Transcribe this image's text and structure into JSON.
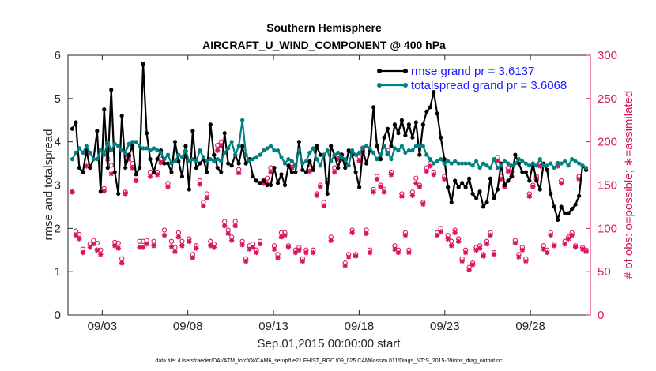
{
  "chart_data": {
    "type": "line",
    "title": "Southern Hemisphere",
    "subtitle": "AIRCRAFT_U_WIND_COMPONENT @ 400 hPa",
    "xlabel": "Sep.01,2015 00:00:00 start",
    "ylabel": "rmse and totalspread",
    "ylabel_right": "# of obs: o=possible; ∗=assimilated",
    "footer": "data file: /Users/raeder/DAI/ATM_forcXX/CAM6_setup/f.e21.FHIST_BGC.f09_025.CAM6assim.011/Diags_NTrS_2015-09/obs_diag_output.nc",
    "ylim": [
      0,
      6
    ],
    "y2lim": [
      0,
      300
    ],
    "xlim": [
      1.0,
      31.5
    ],
    "yticks": [
      "0",
      "1",
      "2",
      "3",
      "4",
      "5",
      "6"
    ],
    "y2ticks": [
      "0",
      "50",
      "100",
      "150",
      "200",
      "250",
      "300"
    ],
    "xticks": [
      {
        "x": 3,
        "label": "09/03"
      },
      {
        "x": 8,
        "label": "09/08"
      },
      {
        "x": 13,
        "label": "09/13"
      },
      {
        "x": 18,
        "label": "09/18"
      },
      {
        "x": 23,
        "label": "09/23"
      },
      {
        "x": 28,
        "label": "09/28"
      }
    ],
    "series": [
      {
        "name": "rmse grand pr = 3.6137",
        "color": "#000000",
        "marker": "dot",
        "axis": "left",
        "values": [
          4.3,
          4.45,
          3.4,
          3.3,
          3.8,
          3.4,
          3.6,
          4.25,
          2.85,
          4.75,
          3.4,
          5.2,
          3.3,
          2.8,
          4.6,
          3.4,
          3.7,
          3.9,
          3.25,
          3.4,
          5.8,
          4.2,
          3.6,
          3.3,
          3.6,
          3.8,
          3.5,
          3.5,
          3.3,
          4.0,
          3.55,
          3.2,
          3.9,
          2.9,
          4.25,
          3.4,
          3.5,
          3.6,
          3.3,
          4.4,
          3.7,
          3.4,
          3.3,
          4.2,
          3.5,
          3.45,
          3.7,
          3.5,
          3.9,
          3.5,
          3.6,
          3.2,
          3.1,
          3.05,
          3.1,
          3.0,
          3.0,
          3.4,
          3.05,
          3.25,
          3.0,
          3.45,
          3.3,
          3.3,
          4.0,
          3.35,
          3.3,
          3.55,
          3.35,
          3.9,
          3.7,
          3.7,
          2.8,
          3.9,
          3.7,
          3.4,
          3.7,
          3.4,
          3.8,
          3.7,
          3.3,
          2.95,
          3.8,
          3.5,
          3.8,
          4.8,
          3.9,
          3.6,
          4.1,
          4.3,
          3.9,
          4.4,
          4.2,
          4.5,
          4.15,
          4.4,
          4.1,
          4.45,
          3.7,
          4.4,
          4.7,
          4.8,
          5.15,
          4.65,
          4.1,
          3.6,
          2.95,
          2.6,
          3.1,
          2.95,
          3.05,
          2.95,
          3.15,
          2.8,
          2.7,
          2.85,
          2.5,
          2.6,
          3.15,
          2.7,
          2.9,
          3.5,
          3.0,
          3.1,
          3.2,
          3.7,
          3.5,
          3.3,
          3.3,
          3.1,
          3.5,
          3.1,
          2.9,
          3.5,
          3.35,
          2.8,
          2.5,
          2.2,
          2.5,
          2.35,
          2.35,
          2.45,
          2.55,
          2.75,
          3.45,
          3.35
        ]
      },
      {
        "name": "totalspread grand pr = 3.6068",
        "color": "#008080",
        "marker": "dot",
        "axis": "left",
        "values": [
          3.6,
          3.75,
          3.85,
          3.75,
          3.9,
          3.75,
          3.6,
          3.6,
          3.8,
          3.7,
          4.0,
          3.8,
          3.95,
          3.9,
          3.8,
          3.75,
          3.95,
          4.0,
          4.0,
          3.9,
          3.85,
          3.85,
          3.8,
          3.85,
          3.8,
          3.75,
          3.6,
          3.7,
          3.5,
          3.55,
          3.7,
          3.65,
          3.8,
          3.55,
          3.6,
          3.55,
          3.8,
          3.65,
          3.55,
          3.6,
          3.55,
          3.6,
          3.55,
          3.75,
          3.85,
          4.0,
          3.7,
          3.9,
          4.5,
          3.7,
          3.55,
          3.6,
          3.65,
          3.7,
          3.8,
          3.85,
          3.9,
          3.8,
          3.8,
          3.65,
          3.5,
          3.6,
          3.55,
          3.45,
          3.8,
          3.5,
          3.55,
          3.75,
          3.85,
          3.6,
          3.45,
          3.7,
          3.8,
          3.55,
          3.7,
          3.75,
          3.65,
          3.6,
          3.45,
          3.8,
          3.7,
          3.75,
          3.85,
          3.9,
          3.85,
          3.75,
          3.6,
          3.7,
          3.9,
          3.75,
          3.6,
          3.85,
          3.8,
          3.9,
          3.75,
          3.8,
          3.8,
          3.9,
          3.9,
          3.9,
          3.7,
          3.6,
          3.5,
          3.55,
          3.6,
          3.5,
          3.55,
          3.5,
          3.55,
          3.5,
          3.5,
          3.5,
          3.5,
          3.45,
          3.55,
          3.4,
          3.5,
          3.45,
          3.4,
          3.6,
          3.4,
          3.45,
          3.55,
          3.5,
          3.45,
          3.5,
          3.6,
          3.55,
          3.5,
          3.45,
          3.5,
          3.45,
          3.6,
          3.45,
          3.45,
          3.5,
          3.4,
          3.5,
          3.5,
          3.55,
          3.45,
          3.6,
          3.55,
          3.5,
          3.45,
          3.4
        ]
      },
      {
        "name": "# of obs possible",
        "color": "#d6145f",
        "marker": "circle",
        "axis": "right",
        "values": [
          142,
          97,
          93,
          76,
          186,
          82,
          86,
          83,
          75,
          146,
          190,
          173,
          84,
          83,
          65,
          142,
          184,
          175,
          160,
          85,
          85,
          86,
          165,
          85,
          165,
          180,
          98,
          152,
          85,
          78,
          95,
          85,
          189,
          88,
          70,
          80,
          155,
          130,
          140,
          85,
          82,
          196,
          200,
          108,
          98,
          90,
          108,
          168,
          85,
          65,
          80,
          82,
          75,
          85,
          155,
          158,
          170,
          80,
          70,
          95,
          95,
          80,
          175,
          75,
          78,
          65,
          75,
          170,
          75,
          140,
          150,
          130,
          155,
          90,
          170,
          185,
          185,
          60,
          70,
          98,
          70,
          183,
          193,
          98,
          75,
          145,
          160,
          150,
          145,
          190,
          165,
          80,
          75,
          140,
          95,
          75,
          142,
          158,
          150,
          130,
          170,
          175,
          165,
          95,
          100,
          160,
          92,
          85,
          98,
          88,
          65,
          75,
          55,
          60,
          78,
          80,
          70,
          85,
          95,
          72,
          182,
          160,
          150,
          170,
          165,
          86,
          70,
          78,
          65,
          140,
          150,
          160,
          175,
          80,
          75,
          95,
          82,
          175,
          155,
          85,
          90,
          95,
          80,
          160,
          78,
          75
        ]
      },
      {
        "name": "# of obs assimilated",
        "color": "#d6145f",
        "marker": "star",
        "axis": "right",
        "values": [
          142,
          92,
          88,
          72,
          172,
          78,
          82,
          75,
          70,
          143,
          180,
          163,
          80,
          77,
          60,
          140,
          180,
          170,
          155,
          78,
          78,
          82,
          160,
          80,
          162,
          176,
          92,
          148,
          79,
          73,
          90,
          80,
          183,
          85,
          66,
          77,
          151,
          126,
          135,
          80,
          78,
          190,
          195,
          103,
          94,
          86,
          103,
          164,
          81,
          62,
          76,
          78,
          72,
          82,
          152,
          152,
          165,
          76,
          66,
          90,
          92,
          78,
          170,
          72,
          75,
          62,
          72,
          166,
          72,
          138,
          148,
          126,
          152,
          86,
          165,
          180,
          180,
          57,
          67,
          95,
          68,
          178,
          188,
          94,
          72,
          142,
          157,
          148,
          142,
          186,
          162,
          76,
          72,
          137,
          92,
          72,
          138,
          152,
          148,
          128,
          166,
          172,
          162,
          92,
          96,
          157,
          88,
          80,
          95,
          85,
          62,
          72,
          52,
          58,
          75,
          77,
          68,
          82,
          92,
          70,
          178,
          157,
          148,
          166,
          160,
          83,
          67,
          75,
          62,
          137,
          148,
          157,
          172,
          76,
          72,
          92,
          80,
          172,
          152,
          82,
          88,
          92,
          78,
          157,
          76,
          73
        ]
      }
    ]
  }
}
